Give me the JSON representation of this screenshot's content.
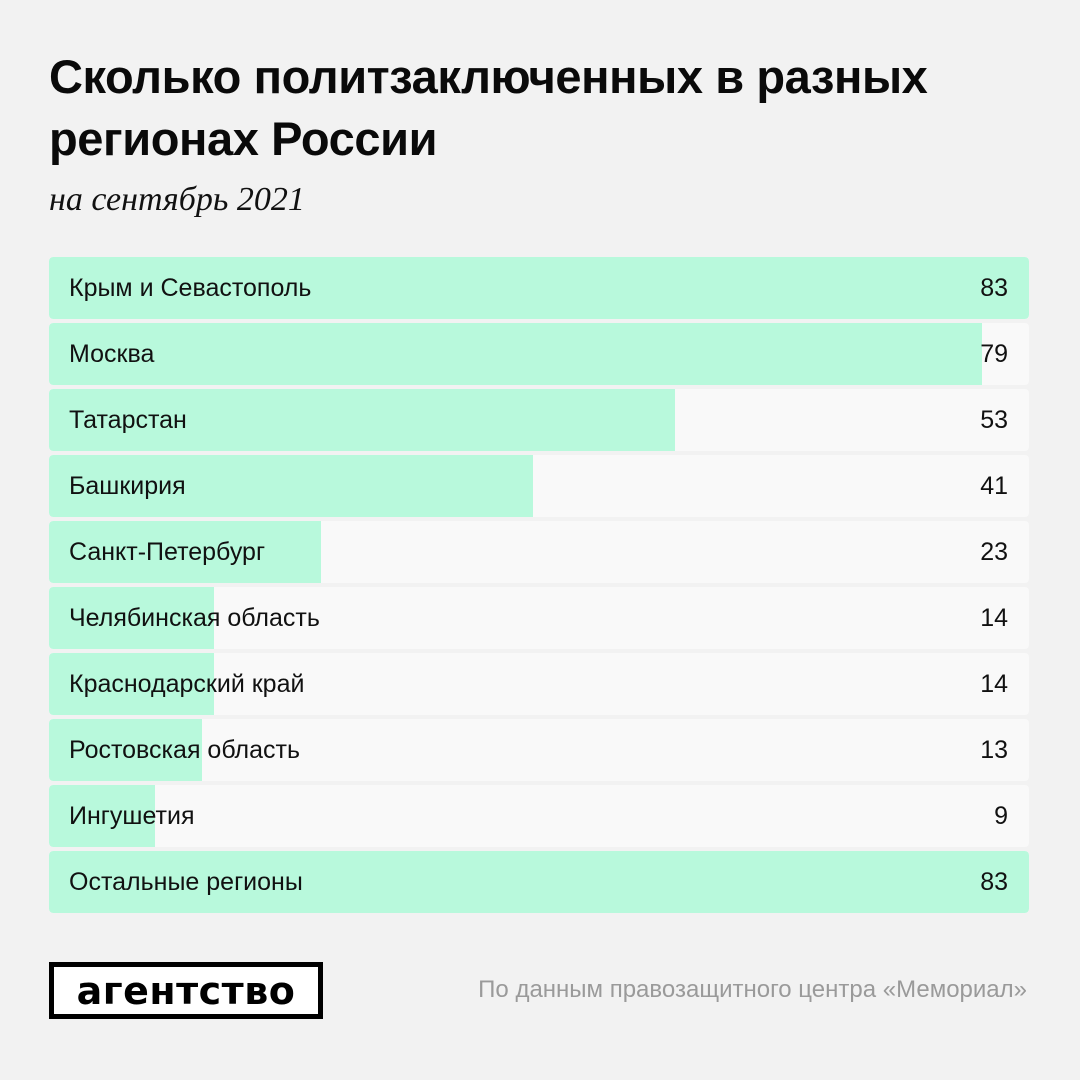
{
  "chart_data": {
    "type": "bar",
    "title": "Сколько политзаключенных в разных регионах России",
    "subtitle": "на сентябрь 2021",
    "categories": [
      "Крым и Севастополь",
      "Москва",
      "Татарстан",
      "Башкирия",
      "Санкт-Петербург",
      "Челябинская область",
      "Краснодарский край",
      "Ростовская область",
      "Ингушетия",
      "Остальные регионы"
    ],
    "values": [
      83,
      79,
      53,
      41,
      23,
      14,
      14,
      13,
      9,
      83
    ],
    "xlim": [
      0,
      83
    ],
    "orientation": "horizontal",
    "grid": false,
    "legend": "none"
  },
  "footer": {
    "logo_text": "агентство",
    "source": "По данным правозащитного центра «Мемориал»"
  },
  "colors": {
    "background": "#f2f2f2",
    "track": "#f9f9f9",
    "bar": "#b8f9dc",
    "text": "#111111",
    "source_text": "#9a9a9a"
  }
}
